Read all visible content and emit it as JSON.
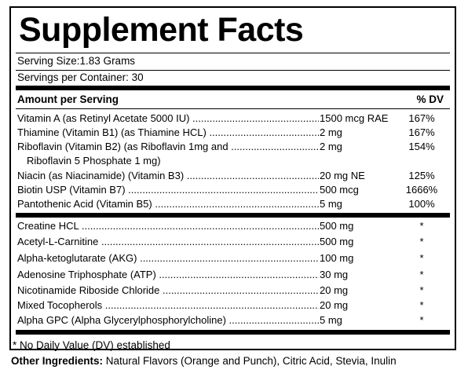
{
  "title": "Supplement Facts",
  "serving_size": "Serving Size:1.83 Grams",
  "servings_per_container": "Servings per Container: 30",
  "header": {
    "amount": "Amount per Serving",
    "dv": "% DV"
  },
  "vitamins": [
    {
      "name": "Vitamin A (as Retinyl Acetate 5000 IU)",
      "amount": "1500 mcg RAE",
      "dv": "167%"
    },
    {
      "name": "Thiamine (Vitamin B1) (as Thiamine HCL)",
      "amount": "2 mg",
      "dv": "167%"
    },
    {
      "name": "Riboflavin (Vitamin B2) (as Riboflavin 1mg and",
      "amount": "2 mg",
      "dv": "154%",
      "continuation": "Riboflavin 5 Phosphate 1 mg)"
    },
    {
      "name": "Niacin (as Niacinamide) (Vitamin B3)",
      "amount": "20 mg NE",
      "dv": "125%"
    },
    {
      "name": "Biotin USP (Vitamin B7)",
      "amount": "500 mcg",
      "dv": "1666%"
    },
    {
      "name": "Pantothenic Acid (Vitamin B5)",
      "amount": "5 mg",
      "dv": "100%"
    }
  ],
  "others": [
    {
      "name": "Creatine HCL",
      "amount": "500 mg",
      "dv": "*"
    },
    {
      "name": "Acetyl-L-Carnitine",
      "amount": "500 mg",
      "dv": "*"
    },
    {
      "name": "Alpha-ketoglutarate (AKG)",
      "amount": "100 mg",
      "dv": "*"
    },
    {
      "name": "Adenosine Triphosphate (ATP)",
      "amount": "30 mg",
      "dv": "*"
    },
    {
      "name": "Nicotinamide Riboside Chloride",
      "amount": "20 mg",
      "dv": "*"
    },
    {
      "name": "Mixed Tocopherols",
      "amount": "20 mg",
      "dv": "*"
    },
    {
      "name": "Alpha GPC (Alpha Glycerylphosphorylcholine)",
      "amount": "5 mg",
      "dv": "*"
    }
  ],
  "footnote": "* No Daily Value (DV) established",
  "other_ingredients": {
    "label": "Other Ingredients:",
    "text": " Natural Flavors (Orange and Punch), Citric Acid, Stevia, Inulin"
  }
}
